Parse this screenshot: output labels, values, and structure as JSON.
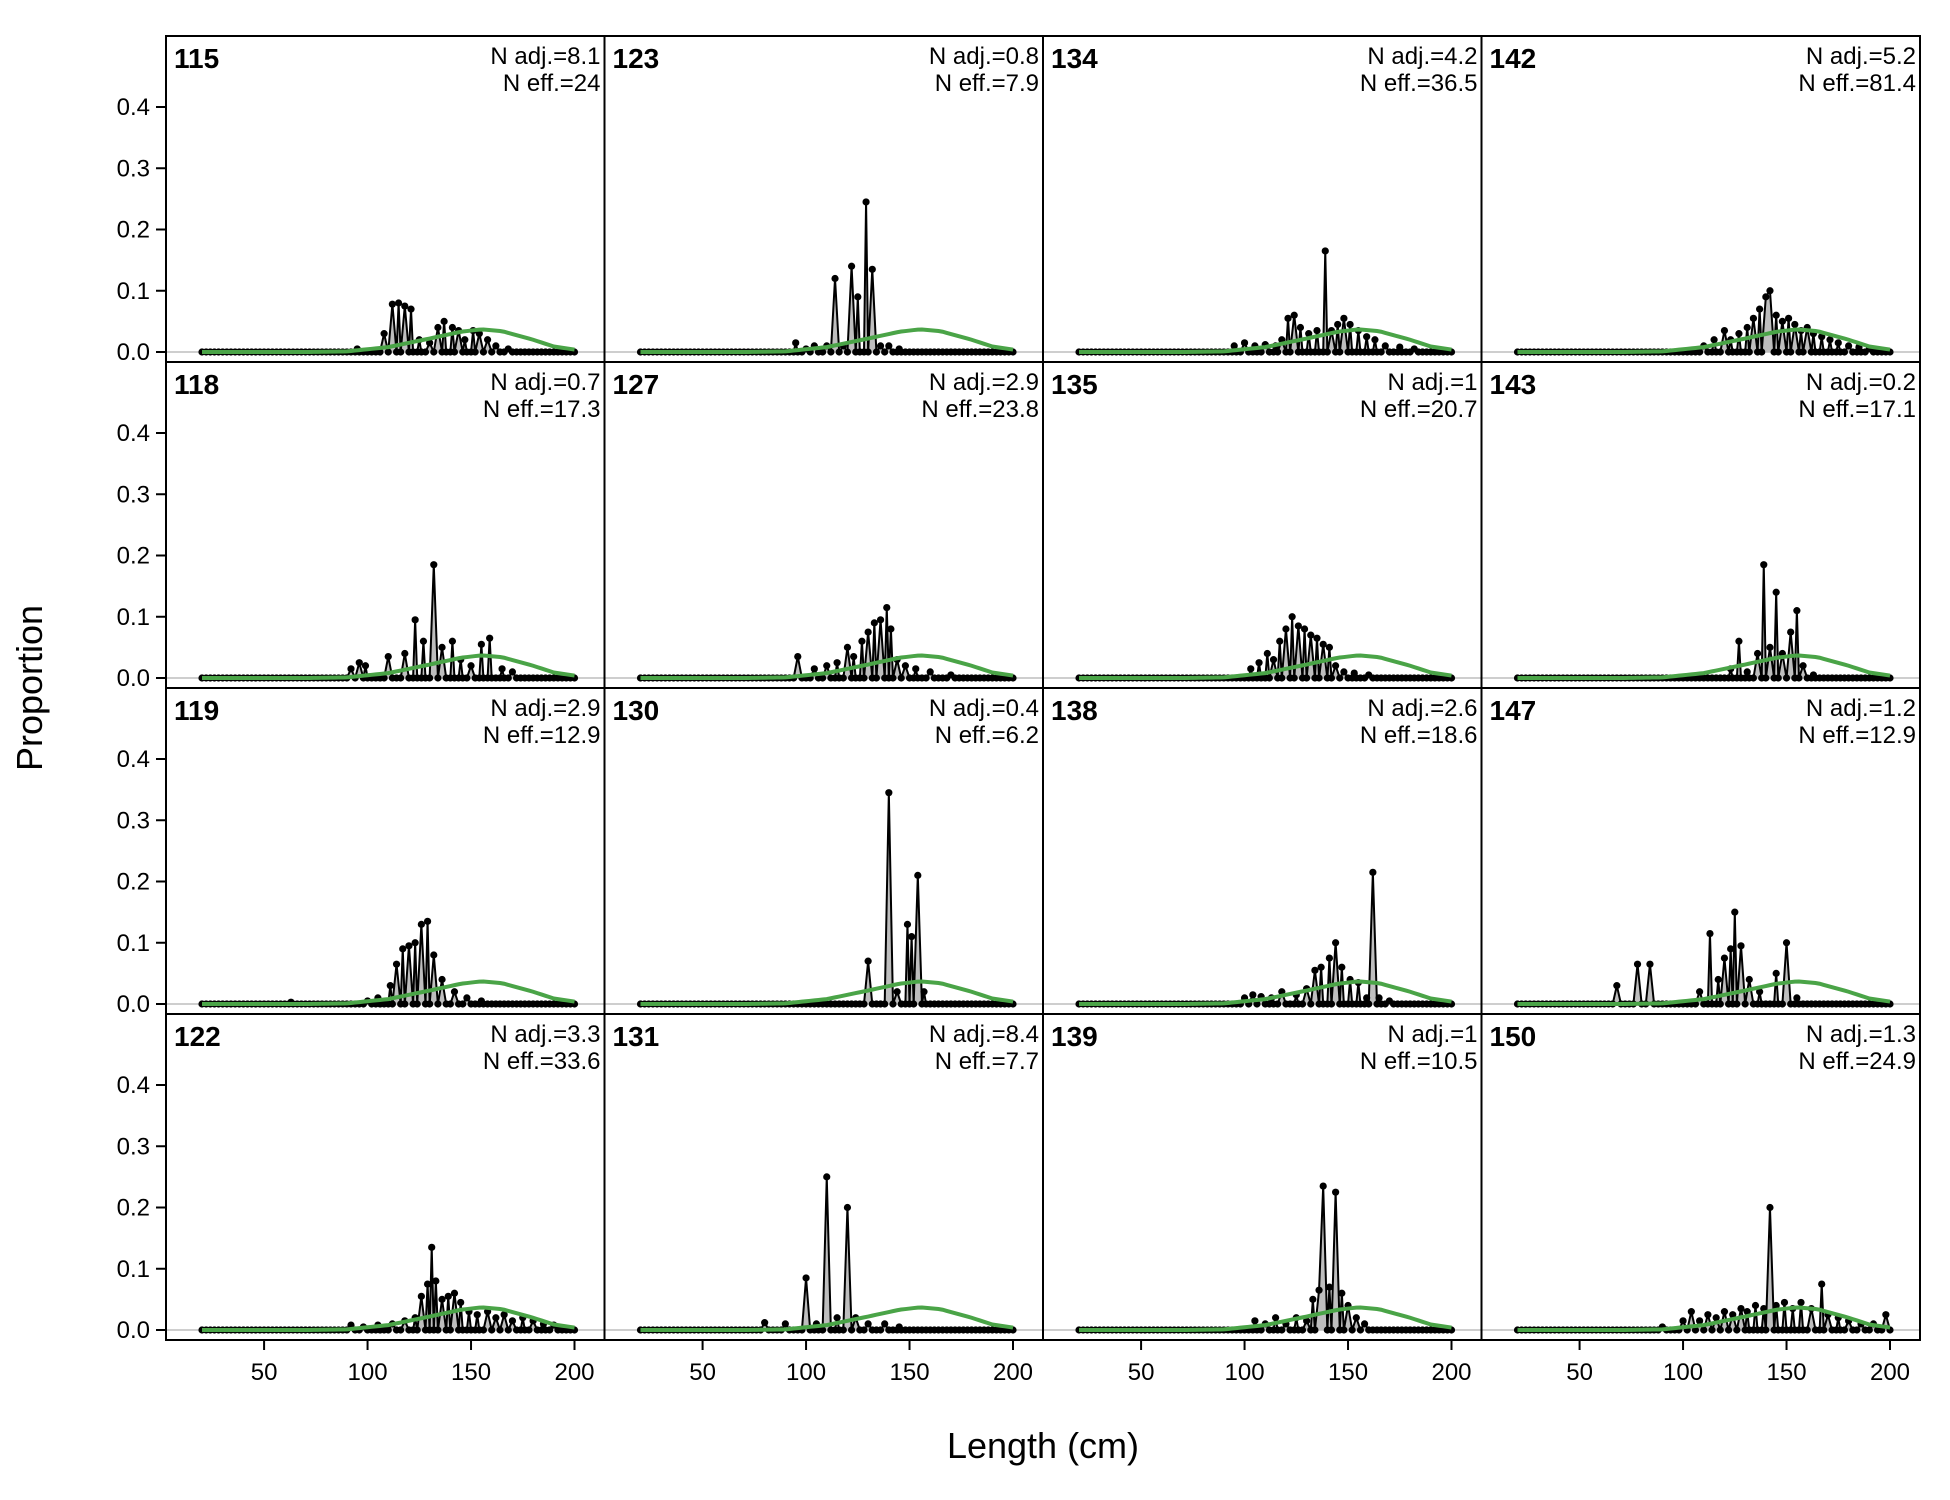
{
  "chart_data": {
    "type": "line",
    "layout": "4x4 facets, column-major",
    "xlabel": "Length (cm)",
    "ylabel": "Proportion",
    "x_ticks": [
      50,
      100,
      150,
      200
    ],
    "y_ticks": [
      0.0,
      0.1,
      0.2,
      0.3,
      0.4
    ],
    "y_tick_labels": [
      "0.0",
      "0.1",
      "0.2",
      "0.3",
      "0.4"
    ],
    "xlim": [
      20,
      200
    ],
    "ylim": [
      0,
      0.48
    ],
    "grid": false,
    "colors": {
      "observed_line": "#000000",
      "observed_fill": "#bebebe",
      "expected_line": "#4aa447",
      "zero_line": "#bebebe",
      "frame": "#000000"
    },
    "expected_curve": {
      "x": [
        20,
        70,
        90,
        110,
        130,
        145,
        155,
        165,
        180,
        190,
        200
      ],
      "y": [
        0,
        0,
        0.001,
        0.008,
        0.022,
        0.033,
        0.037,
        0.034,
        0.02,
        0.009,
        0.004
      ]
    },
    "panels": [
      {
        "label": "115",
        "n_adj": "N adj.=8.1",
        "n_eff": "N eff.=24",
        "peaks": [
          [
            95,
            0.005
          ],
          [
            108,
            0.03
          ],
          [
            112,
            0.078
          ],
          [
            115,
            0.08
          ],
          [
            118,
            0.075
          ],
          [
            121,
            0.07
          ],
          [
            125,
            0.02
          ],
          [
            130,
            0.015
          ],
          [
            134,
            0.04
          ],
          [
            137,
            0.05
          ],
          [
            141,
            0.04
          ],
          [
            144,
            0.035
          ],
          [
            147,
            0.02
          ],
          [
            151,
            0.035
          ],
          [
            154,
            0.03
          ],
          [
            158,
            0.02
          ],
          [
            162,
            0.01
          ],
          [
            168,
            0.005
          ]
        ]
      },
      {
        "label": "118",
        "n_adj": "N adj.=0.7",
        "n_eff": "N eff.=17.3",
        "peaks": [
          [
            92,
            0.015
          ],
          [
            96,
            0.025
          ],
          [
            99,
            0.02
          ],
          [
            110,
            0.035
          ],
          [
            118,
            0.04
          ],
          [
            123,
            0.095
          ],
          [
            127,
            0.06
          ],
          [
            132,
            0.185
          ],
          [
            136,
            0.05
          ],
          [
            141,
            0.06
          ],
          [
            145,
            0.03
          ],
          [
            150,
            0.02
          ],
          [
            155,
            0.055
          ],
          [
            159,
            0.065
          ],
          [
            165,
            0.015
          ],
          [
            170,
            0.01
          ]
        ]
      },
      {
        "label": "119",
        "n_adj": "N adj.=2.9",
        "n_eff": "N eff.=12.9",
        "peaks": [
          [
            63,
            0.003
          ],
          [
            100,
            0.005
          ],
          [
            105,
            0.01
          ],
          [
            111,
            0.03
          ],
          [
            114,
            0.065
          ],
          [
            117,
            0.09
          ],
          [
            120,
            0.095
          ],
          [
            123,
            0.1
          ],
          [
            126,
            0.13
          ],
          [
            129,
            0.135
          ],
          [
            132,
            0.08
          ],
          [
            136,
            0.04
          ],
          [
            142,
            0.02
          ],
          [
            148,
            0.01
          ],
          [
            155,
            0.005
          ]
        ]
      },
      {
        "label": "122",
        "n_adj": "N adj.=3.3",
        "n_eff": "N eff.=33.6",
        "peaks": [
          [
            92,
            0.008
          ],
          [
            98,
            0.005
          ],
          [
            105,
            0.008
          ],
          [
            112,
            0.01
          ],
          [
            118,
            0.015
          ],
          [
            123,
            0.02
          ],
          [
            126,
            0.055
          ],
          [
            129,
            0.075
          ],
          [
            131,
            0.135
          ],
          [
            133,
            0.08
          ],
          [
            136,
            0.05
          ],
          [
            139,
            0.055
          ],
          [
            142,
            0.06
          ],
          [
            145,
            0.045
          ],
          [
            149,
            0.03
          ],
          [
            153,
            0.025
          ],
          [
            158,
            0.03
          ],
          [
            162,
            0.02
          ],
          [
            166,
            0.025
          ],
          [
            170,
            0.015
          ],
          [
            175,
            0.02
          ],
          [
            180,
            0.015
          ],
          [
            185,
            0.01
          ],
          [
            190,
            0.008
          ]
        ]
      },
      {
        "label": "123",
        "n_adj": "N adj.=0.8",
        "n_eff": "N eff.=7.9",
        "peaks": [
          [
            95,
            0.015
          ],
          [
            100,
            0.005
          ],
          [
            104,
            0.01
          ],
          [
            110,
            0.01
          ],
          [
            114,
            0.12
          ],
          [
            118,
            0.01
          ],
          [
            122,
            0.14
          ],
          [
            125,
            0.09
          ],
          [
            129,
            0.245
          ],
          [
            132,
            0.135
          ],
          [
            136,
            0.01
          ],
          [
            140,
            0.01
          ],
          [
            145,
            0.005
          ]
        ]
      },
      {
        "label": "127",
        "n_adj": "N adj.=2.9",
        "n_eff": "N eff.=23.8",
        "peaks": [
          [
            96,
            0.035
          ],
          [
            104,
            0.015
          ],
          [
            110,
            0.02
          ],
          [
            115,
            0.025
          ],
          [
            120,
            0.05
          ],
          [
            123,
            0.035
          ],
          [
            127,
            0.06
          ],
          [
            130,
            0.075
          ],
          [
            133,
            0.09
          ],
          [
            136,
            0.095
          ],
          [
            139,
            0.115
          ],
          [
            141,
            0.08
          ],
          [
            144,
            0.03
          ],
          [
            148,
            0.02
          ],
          [
            153,
            0.015
          ],
          [
            160,
            0.01
          ],
          [
            170,
            0.005
          ]
        ]
      },
      {
        "label": "130",
        "n_adj": "N adj.=0.4",
        "n_eff": "N eff.=6.2",
        "peaks": [
          [
            130,
            0.07
          ],
          [
            140,
            0.345
          ],
          [
            144,
            0.02
          ],
          [
            149,
            0.13
          ],
          [
            151,
            0.11
          ],
          [
            154,
            0.21
          ],
          [
            157,
            0.02
          ]
        ]
      },
      {
        "label": "131",
        "n_adj": "N adj.=8.4",
        "n_eff": "N eff.=7.7",
        "peaks": [
          [
            80,
            0.012
          ],
          [
            90,
            0.01
          ],
          [
            100,
            0.085
          ],
          [
            105,
            0.01
          ],
          [
            110,
            0.25
          ],
          [
            115,
            0.02
          ],
          [
            120,
            0.2
          ],
          [
            124,
            0.02
          ],
          [
            130,
            0.01
          ],
          [
            138,
            0.01
          ],
          [
            145,
            0.005
          ]
        ]
      },
      {
        "label": "134",
        "n_adj": "N adj.=4.2",
        "n_eff": "N eff.=36.5",
        "peaks": [
          [
            95,
            0.01
          ],
          [
            100,
            0.015
          ],
          [
            105,
            0.01
          ],
          [
            110,
            0.012
          ],
          [
            115,
            0.01
          ],
          [
            118,
            0.02
          ],
          [
            121,
            0.055
          ],
          [
            124,
            0.06
          ],
          [
            127,
            0.04
          ],
          [
            131,
            0.03
          ],
          [
            135,
            0.035
          ],
          [
            139,
            0.165
          ],
          [
            142,
            0.035
          ],
          [
            145,
            0.045
          ],
          [
            148,
            0.055
          ],
          [
            151,
            0.045
          ],
          [
            155,
            0.035
          ],
          [
            159,
            0.025
          ],
          [
            163,
            0.02
          ],
          [
            168,
            0.01
          ],
          [
            175,
            0.008
          ],
          [
            182,
            0.005
          ]
        ]
      },
      {
        "label": "135",
        "n_adj": "N adj.=1",
        "n_eff": "N eff.=20.7",
        "peaks": [
          [
            103,
            0.015
          ],
          [
            107,
            0.025
          ],
          [
            111,
            0.04
          ],
          [
            114,
            0.03
          ],
          [
            117,
            0.06
          ],
          [
            120,
            0.08
          ],
          [
            123,
            0.1
          ],
          [
            126,
            0.085
          ],
          [
            129,
            0.08
          ],
          [
            132,
            0.07
          ],
          [
            135,
            0.065
          ],
          [
            138,
            0.055
          ],
          [
            141,
            0.05
          ],
          [
            144,
            0.02
          ],
          [
            148,
            0.01
          ],
          [
            153,
            0.008
          ],
          [
            160,
            0.005
          ]
        ]
      },
      {
        "label": "138",
        "n_adj": "N adj.=2.6",
        "n_eff": "N eff.=18.6",
        "peaks": [
          [
            100,
            0.01
          ],
          [
            104,
            0.015
          ],
          [
            108,
            0.012
          ],
          [
            113,
            0.01
          ],
          [
            118,
            0.02
          ],
          [
            125,
            0.015
          ],
          [
            130,
            0.025
          ],
          [
            134,
            0.055
          ],
          [
            137,
            0.06
          ],
          [
            141,
            0.075
          ],
          [
            144,
            0.1
          ],
          [
            147,
            0.06
          ],
          [
            151,
            0.04
          ],
          [
            155,
            0.035
          ],
          [
            159,
            0.01
          ],
          [
            162,
            0.215
          ],
          [
            165,
            0.01
          ],
          [
            170,
            0.005
          ]
        ]
      },
      {
        "label": "139",
        "n_adj": "N adj.=1",
        "n_eff": "N eff.=10.5",
        "peaks": [
          [
            105,
            0.015
          ],
          [
            110,
            0.01
          ],
          [
            115,
            0.02
          ],
          [
            120,
            0.01
          ],
          [
            125,
            0.02
          ],
          [
            130,
            0.015
          ],
          [
            133,
            0.05
          ],
          [
            136,
            0.065
          ],
          [
            138,
            0.235
          ],
          [
            141,
            0.07
          ],
          [
            144,
            0.225
          ],
          [
            147,
            0.06
          ],
          [
            150,
            0.04
          ],
          [
            154,
            0.02
          ],
          [
            158,
            0.01
          ]
        ]
      },
      {
        "label": "142",
        "n_adj": "N adj.=5.2",
        "n_eff": "N eff.=81.4",
        "peaks": [
          [
            110,
            0.01
          ],
          [
            115,
            0.02
          ],
          [
            120,
            0.035
          ],
          [
            123,
            0.02
          ],
          [
            127,
            0.03
          ],
          [
            131,
            0.04
          ],
          [
            134,
            0.055
          ],
          [
            137,
            0.07
          ],
          [
            140,
            0.09
          ],
          [
            142,
            0.1
          ],
          [
            145,
            0.06
          ],
          [
            148,
            0.05
          ],
          [
            151,
            0.055
          ],
          [
            154,
            0.045
          ],
          [
            157,
            0.035
          ],
          [
            160,
            0.04
          ],
          [
            163,
            0.03
          ],
          [
            167,
            0.025
          ],
          [
            171,
            0.02
          ],
          [
            175,
            0.015
          ],
          [
            180,
            0.01
          ],
          [
            185,
            0.008
          ],
          [
            190,
            0.005
          ]
        ]
      },
      {
        "label": "143",
        "n_adj": "N adj.=0.2",
        "n_eff": "N eff.=17.1",
        "peaks": [
          [
            123,
            0.015
          ],
          [
            127,
            0.06
          ],
          [
            131,
            0.01
          ],
          [
            136,
            0.04
          ],
          [
            139,
            0.185
          ],
          [
            142,
            0.05
          ],
          [
            145,
            0.14
          ],
          [
            148,
            0.04
          ],
          [
            152,
            0.075
          ],
          [
            155,
            0.11
          ],
          [
            158,
            0.02
          ],
          [
            163,
            0.005
          ]
        ]
      },
      {
        "label": "147",
        "n_adj": "N adj.=1.2",
        "n_eff": "N eff.=12.9",
        "peaks": [
          [
            68,
            0.03
          ],
          [
            78,
            0.065
          ],
          [
            84,
            0.065
          ],
          [
            108,
            0.02
          ],
          [
            113,
            0.115
          ],
          [
            117,
            0.04
          ],
          [
            120,
            0.075
          ],
          [
            123,
            0.09
          ],
          [
            125,
            0.15
          ],
          [
            128,
            0.095
          ],
          [
            132,
            0.04
          ],
          [
            137,
            0.02
          ],
          [
            145,
            0.05
          ],
          [
            150,
            0.1
          ],
          [
            155,
            0.01
          ]
        ]
      },
      {
        "label": "150",
        "n_adj": "N adj.=1.3",
        "n_eff": "N eff.=24.9",
        "peaks": [
          [
            90,
            0.005
          ],
          [
            100,
            0.015
          ],
          [
            104,
            0.03
          ],
          [
            108,
            0.015
          ],
          [
            112,
            0.025
          ],
          [
            116,
            0.02
          ],
          [
            120,
            0.03
          ],
          [
            124,
            0.025
          ],
          [
            128,
            0.035
          ],
          [
            131,
            0.03
          ],
          [
            135,
            0.04
          ],
          [
            139,
            0.035
          ],
          [
            142,
            0.2
          ],
          [
            145,
            0.04
          ],
          [
            149,
            0.045
          ],
          [
            153,
            0.035
          ],
          [
            157,
            0.045
          ],
          [
            162,
            0.035
          ],
          [
            167,
            0.075
          ],
          [
            170,
            0.025
          ],
          [
            175,
            0.02
          ],
          [
            180,
            0.015
          ],
          [
            186,
            0.01
          ],
          [
            192,
            0.01
          ],
          [
            198,
            0.025
          ]
        ]
      }
    ]
  }
}
